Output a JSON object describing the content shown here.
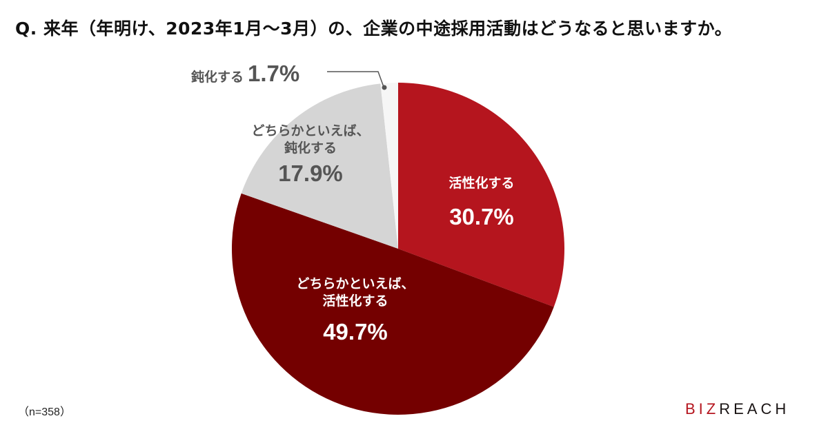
{
  "title": "Q. 来年（年明け、2023年1月～3月）の、企業の中途採用活動はどうなると思いますか。",
  "sample_size": "（n=358）",
  "logo": {
    "part1": "BIZ",
    "part2": "REACH"
  },
  "colors": {
    "active": "#b5151e",
    "somewhat_active": "#740000",
    "somewhat_slow": "#d5d5d5",
    "slow": "#f6f6f6",
    "label_gray": "#555555"
  },
  "labels": {
    "active": {
      "name": "活性化する",
      "pct": "30.7%"
    },
    "somewhat_active": {
      "line1": "どちらかといえば、",
      "line2": "活性化する",
      "pct": "49.7%"
    },
    "somewhat_slow": {
      "line1": "どちらかといえば、",
      "line2": "鈍化する",
      "pct": "17.9%"
    },
    "slow": {
      "name": "鈍化する",
      "pct": "1.7%"
    }
  },
  "chart_data": {
    "type": "pie",
    "title": "Q. 来年（年明け、2023年1月～3月）の、企業の中途採用活動はどうなると思いますか。",
    "categories": [
      "活性化する",
      "どちらかといえば、活性化する",
      "どちらかといえば、鈍化する",
      "鈍化する"
    ],
    "values": [
      30.7,
      49.7,
      17.9,
      1.7
    ],
    "unit": "%",
    "start_angle": "12 o'clock, clockwise",
    "colors": [
      "#b5151e",
      "#740000",
      "#d5d5d5",
      "#f6f6f6"
    ],
    "annotations": [
      "(n=358)"
    ]
  }
}
